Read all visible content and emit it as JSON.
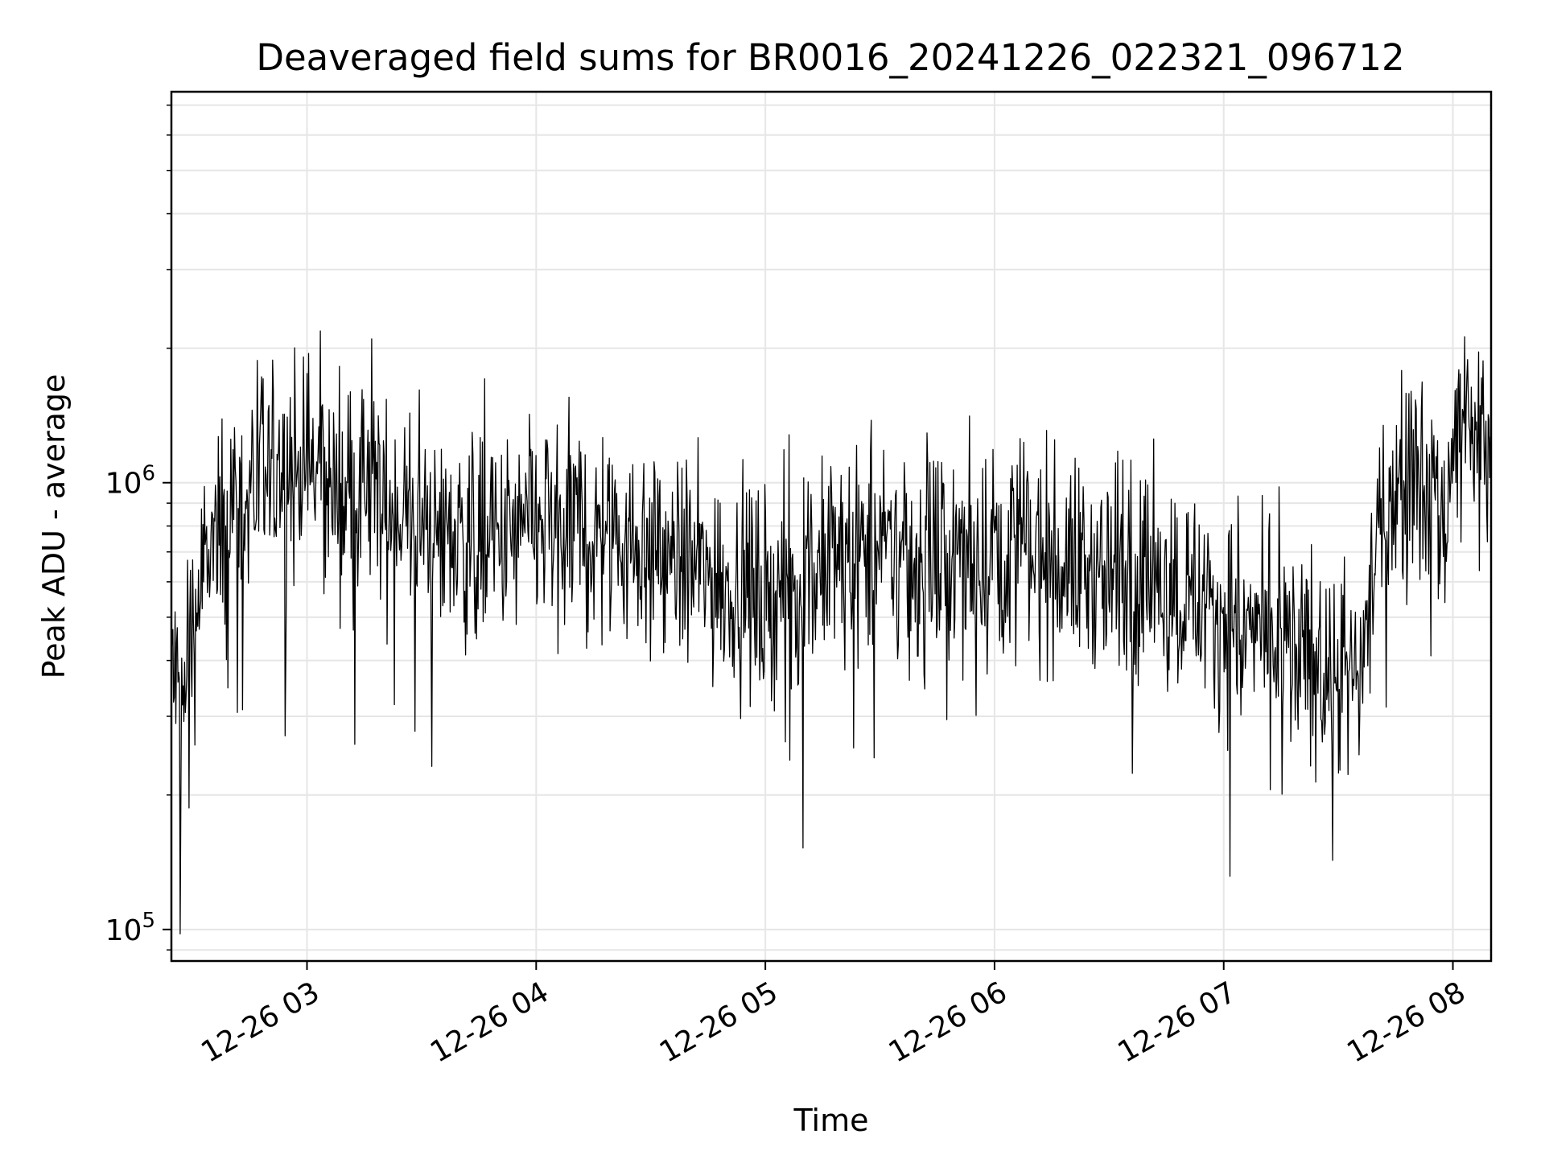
{
  "chart_data": {
    "type": "line",
    "title": "Deaveraged field sums for BR0016_20241226_022321_096712",
    "xlabel": "Time",
    "ylabel": "Peak ADU - average",
    "yscale": "log",
    "ylim": [
      85000,
      7500000
    ],
    "xlim": [
      "12-26 02:24:30",
      "12-26 08:10:00"
    ],
    "grid": true,
    "line_color": "#000000",
    "grid_color": "#e6e6e6",
    "x_ticks": [
      "12-26 03",
      "12-26 04",
      "12-26 05",
      "12-26 06",
      "12-26 07",
      "12-26 08"
    ],
    "y_ticks": [
      {
        "value": 100000,
        "base": "10",
        "exp": "5"
      },
      {
        "value": 1000000,
        "base": "10",
        "exp": "6"
      }
    ],
    "series": [
      {
        "x": [
          "12-26 02:24:30",
          "12-26 02:27:00",
          "12-26 02:30:00",
          "12-26 02:33:00",
          "12-26 02:36:00",
          "12-26 02:40:00",
          "12-26 02:45:00",
          "12-26 02:50:00",
          "12-26 02:55:00",
          "12-26 03:00:00",
          "12-26 03:05:00",
          "12-26 03:10:00",
          "12-26 03:20:00",
          "12-26 03:30:00",
          "12-26 03:40:00",
          "12-26 03:50:00",
          "12-26 04:00:00",
          "12-26 04:10:00",
          "12-26 04:20:00",
          "12-26 04:30:00",
          "12-26 04:40:00",
          "12-26 04:50:00",
          "12-26 05:00:00",
          "12-26 05:10:00",
          "12-26 05:20:00",
          "12-26 05:30:00",
          "12-26 05:40:00",
          "12-26 05:50:00",
          "12-26 06:00:00",
          "12-26 06:10:00",
          "12-26 06:20:00",
          "12-26 06:30:00",
          "12-26 06:40:00",
          "12-26 06:50:00",
          "12-26 07:00:00",
          "12-26 07:10:00",
          "12-26 07:20:00",
          "12-26 07:28:00",
          "12-26 07:35:00",
          "12-26 07:40:00",
          "12-26 07:45:00",
          "12-26 07:50:00",
          "12-26 07:55:00",
          "12-26 07:58:00",
          "12-26 08:00:00",
          "12-26 08:03:00",
          "12-26 08:06:00",
          "12-26 08:10:00"
        ],
        "values": [
          400000,
          300000,
          450000,
          650000,
          700000,
          900000,
          950000,
          1000000,
          1050000,
          1100000,
          1000000,
          950000,
          900000,
          800000,
          750000,
          720000,
          800000,
          800000,
          780000,
          700000,
          650000,
          600000,
          550000,
          600000,
          680000,
          700000,
          680000,
          650000,
          720000,
          700000,
          650000,
          620000,
          600000,
          580000,
          500000,
          450000,
          400000,
          380000,
          350000,
          700000,
          1000000,
          1100000,
          950000,
          800000,
          1300000,
          1400000,
          1200000,
          1250000
        ]
      }
    ]
  }
}
